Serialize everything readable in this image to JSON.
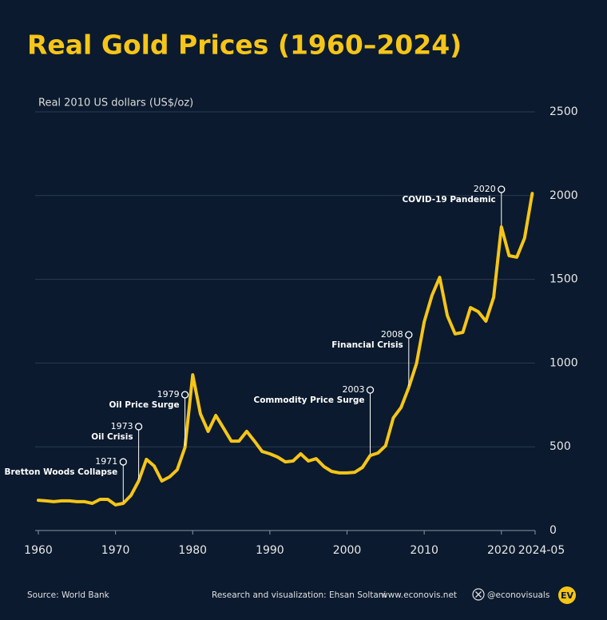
{
  "chart_data": {
    "type": "line",
    "title": "Real Gold Prices (1960–2024)",
    "y_label": "Real 2010 US dollars (US$/oz)",
    "x": [
      1960,
      1961,
      1962,
      1963,
      1964,
      1965,
      1966,
      1967,
      1968,
      1969,
      1970,
      1971,
      1972,
      1973,
      1974,
      1975,
      1976,
      1977,
      1978,
      1979,
      1980,
      1981,
      1982,
      1983,
      1984,
      1985,
      1986,
      1987,
      1988,
      1989,
      1990,
      1991,
      1992,
      1993,
      1994,
      1995,
      1996,
      1997,
      1998,
      1999,
      2000,
      2001,
      2002,
      2003,
      2004,
      2005,
      2006,
      2007,
      2008,
      2009,
      2010,
      2011,
      2012,
      2013,
      2014,
      2015,
      2016,
      2017,
      2018,
      2019,
      2020,
      2021,
      2022,
      2023,
      2024
    ],
    "series": [
      {
        "name": "Real gold price",
        "color": "#f5c518",
        "values": [
          181,
          177,
          172,
          177,
          177,
          172,
          172,
          162,
          186,
          186,
          153,
          162,
          210,
          296,
          425,
          386,
          296,
          320,
          363,
          496,
          930,
          697,
          592,
          687,
          611,
          534,
          534,
          592,
          534,
          472,
          458,
          439,
          410,
          415,
          458,
          415,
          429,
          382,
          353,
          344,
          344,
          348,
          377,
          448,
          463,
          506,
          673,
          735,
          854,
          997,
          1245,
          1403,
          1512,
          1283,
          1174,
          1183,
          1331,
          1307,
          1250,
          1393,
          1813,
          1641,
          1632,
          1746,
          2013
        ]
      }
    ],
    "xlim": [
      1960,
      2024.37
    ],
    "xticks": [
      1960,
      1970,
      1980,
      1990,
      2000,
      2010,
      2020,
      {
        "value": 2024.37,
        "label": "2024-05"
      }
    ],
    "ylim": [
      0,
      2500
    ],
    "yticks": [
      0,
      500,
      1000,
      1500,
      2000,
      2500
    ],
    "grid": true,
    "annotations": [
      {
        "x": 1971,
        "year": "1971",
        "text": "Bretton Woods Collapse"
      },
      {
        "x": 1973,
        "year": "1973",
        "text": "Oil Crisis"
      },
      {
        "x": 1979,
        "year": "1979",
        "text": "Oil Price Surge"
      },
      {
        "x": 2003,
        "year": "2003",
        "text": "Commodity Price Surge"
      },
      {
        "x": 2008,
        "year": "2008",
        "text": "Financial Crisis"
      },
      {
        "x": 2020,
        "year": "2020",
        "text": "COVID-19 Pandemic"
      }
    ]
  },
  "footer": {
    "source": "Source: World Bank",
    "credit": "Research and visualization: Ehsan Soltani",
    "website": "www.econovis.net",
    "social": "@econovisuals",
    "logo": "EV"
  }
}
